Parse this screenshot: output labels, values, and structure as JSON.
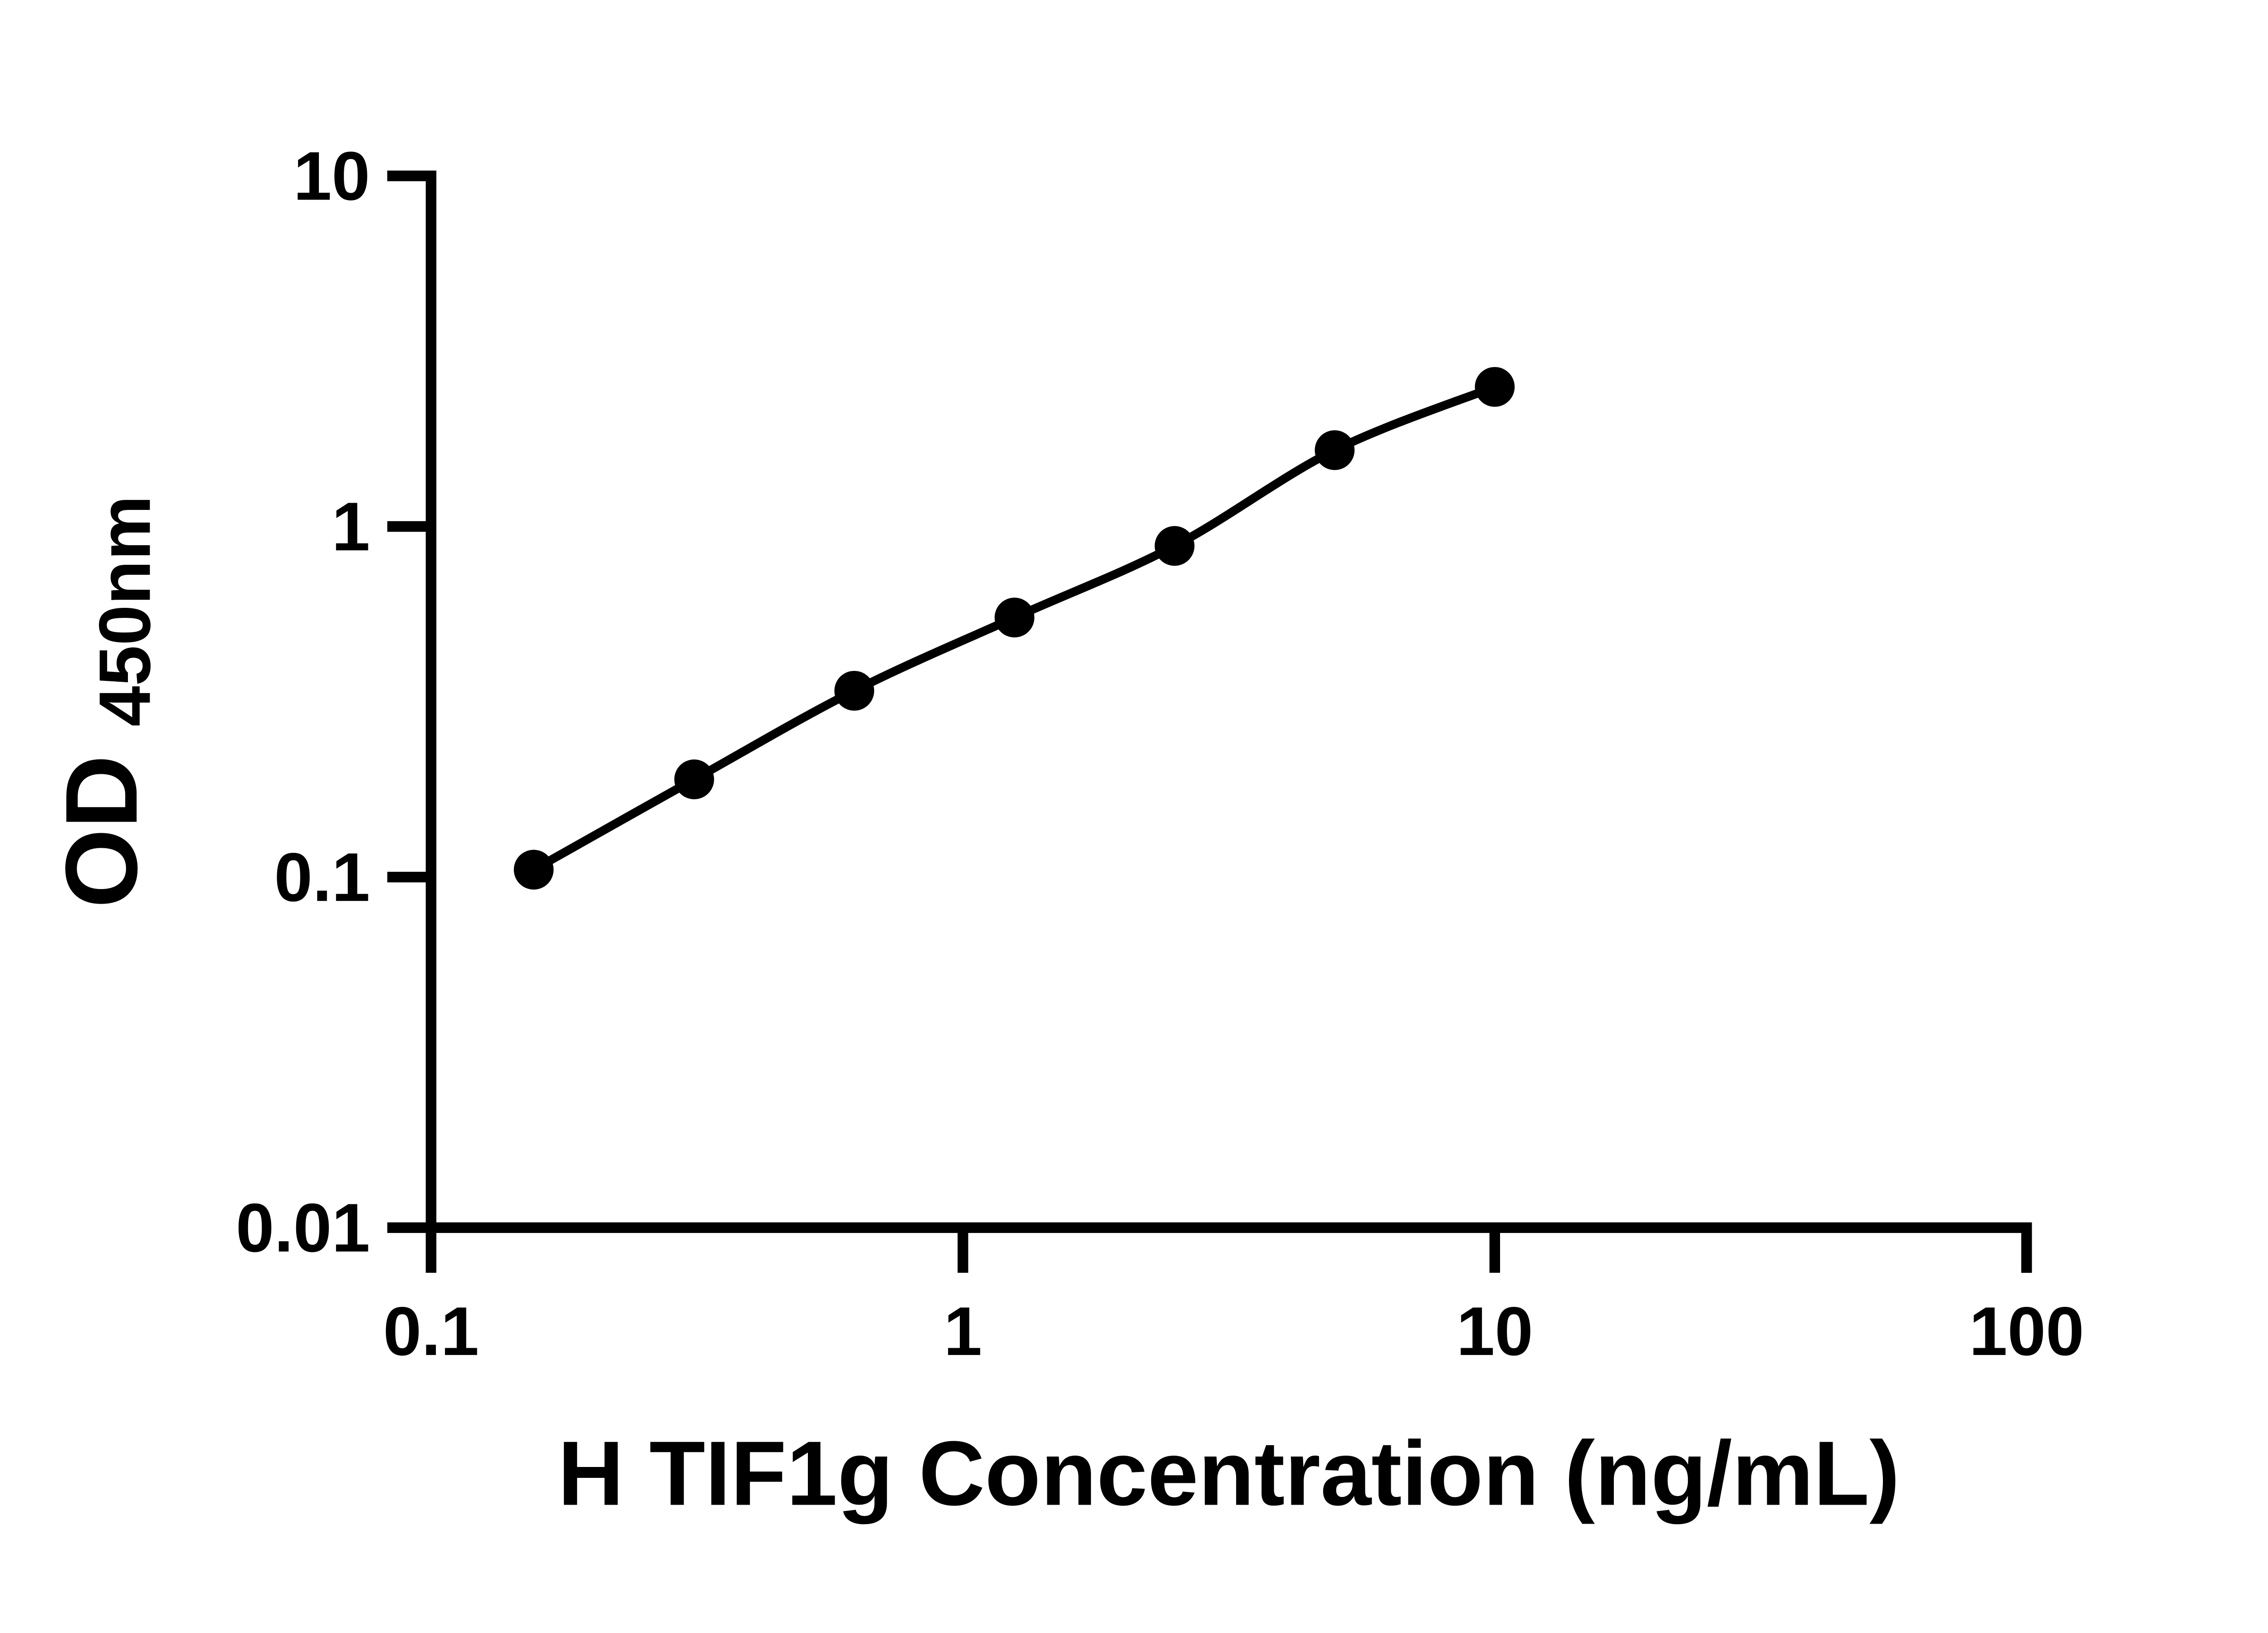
{
  "chart_data": {
    "type": "scatter",
    "subtype": "standard-curve-with-fit-line",
    "title": "",
    "xlabel": "H TIF1g Concentration (ng/mL)",
    "ylabel_main": "OD",
    "ylabel_sub": "450nm",
    "x_scale": "log",
    "y_scale": "log",
    "xlim": [
      0.1,
      100
    ],
    "ylim": [
      0.01,
      10
    ],
    "x_ticks": [
      0.1,
      1,
      10,
      100
    ],
    "x_tick_labels": [
      "0.1",
      "1",
      "10",
      "100"
    ],
    "y_ticks": [
      0.01,
      0.1,
      1,
      10
    ],
    "y_tick_labels": [
      "0.01",
      "0.1",
      "1",
      "10"
    ],
    "grid": false,
    "legend_position": "none",
    "series": [
      {
        "marker": "filled-circle",
        "color": "#000000",
        "points": [
          {
            "x": 0.156,
            "y": 0.105
          },
          {
            "x": 0.3125,
            "y": 0.19
          },
          {
            "x": 0.625,
            "y": 0.34
          },
          {
            "x": 1.25,
            "y": 0.55
          },
          {
            "x": 2.5,
            "y": 0.88
          },
          {
            "x": 5,
            "y": 1.65
          },
          {
            "x": 10,
            "y": 2.5
          }
        ]
      }
    ]
  },
  "colors": {
    "foreground": "#000000",
    "background": "#ffffff"
  }
}
